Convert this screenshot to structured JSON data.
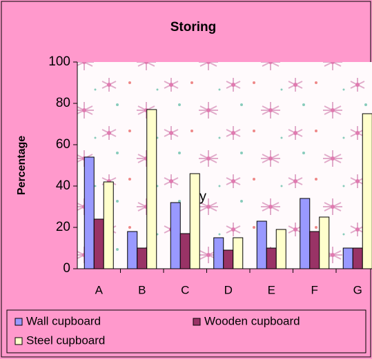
{
  "chart_data": {
    "type": "bar",
    "title": "Storing",
    "y_label": "Percentage",
    "annotation": "y",
    "categories": [
      "A",
      "B",
      "C",
      "D",
      "E",
      "F",
      "G"
    ],
    "series": [
      {
        "name": "Wall cupboard",
        "color": "#9999ff",
        "values": [
          54,
          18,
          32,
          15,
          23,
          34,
          10
        ]
      },
      {
        "name": "Wooden cupboard",
        "color": "#993366",
        "values": [
          24,
          10,
          17,
          9,
          10,
          18,
          10
        ]
      },
      {
        "name": "Steel cupboard",
        "color": "#ffffcc",
        "values": [
          42,
          77,
          46,
          15,
          19,
          25,
          75
        ]
      }
    ],
    "ylim": [
      0,
      100
    ],
    "yticks": [
      0,
      20,
      40,
      60,
      80,
      100
    ],
    "grid": false
  }
}
